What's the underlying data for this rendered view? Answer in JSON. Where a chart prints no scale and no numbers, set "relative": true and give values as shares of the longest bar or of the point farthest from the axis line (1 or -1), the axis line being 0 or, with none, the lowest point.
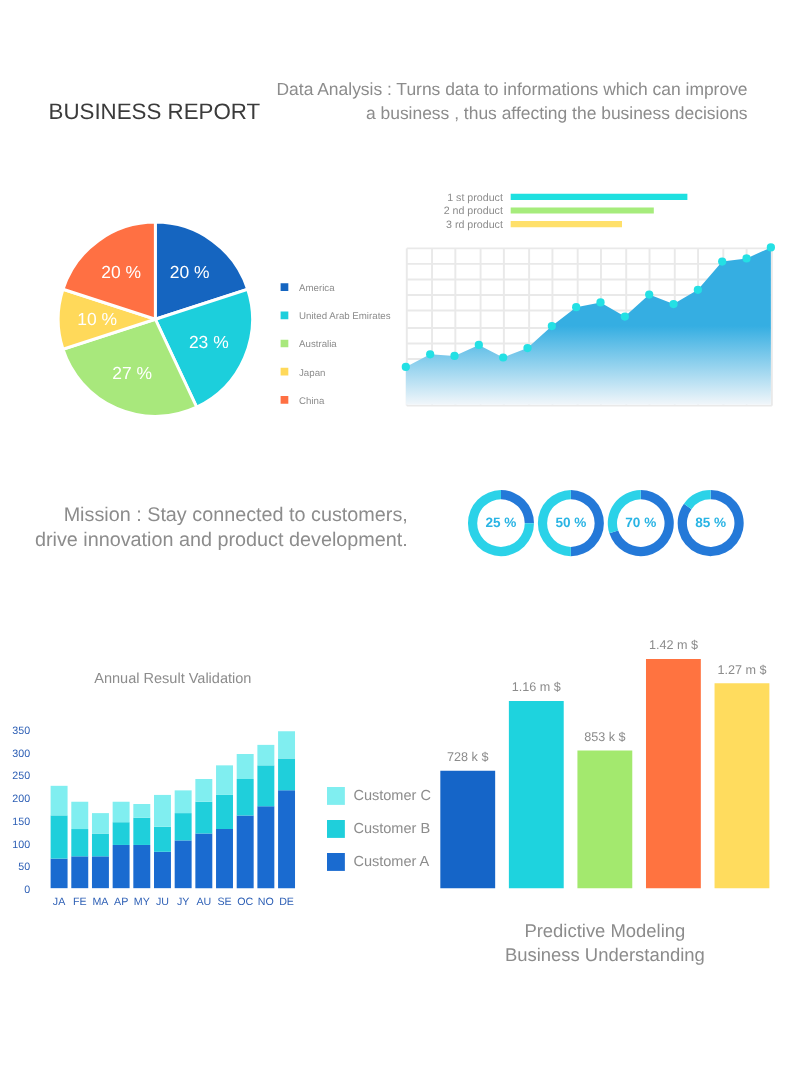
{
  "chart_data": [
    {
      "type": "other",
      "title": "BUSINESS REPORT",
      "subtitle": "Data Analysis : Turns data to informations which can improve a business , thus affecting the business decisions"
    },
    {
      "type": "pie",
      "categories": [
        "America",
        "United Arab Emirates",
        "Australia",
        "Japan",
        "China"
      ],
      "values": [
        20,
        23,
        27,
        10,
        20
      ],
      "colors": [
        "#1565c0",
        "#1ccfdc",
        "#a8e87c",
        "#ffd95a",
        "#ff7043"
      ],
      "value_labels": [
        "20 %",
        "23 %",
        "27 %",
        "10 %",
        "20 %"
      ],
      "legend": "right"
    },
    {
      "type": "bar",
      "orientation": "horizontal",
      "relative": true,
      "categories": [
        "1 st product",
        "2 nd product",
        "3 rd product"
      ],
      "values": [
        1,
        0.81,
        0.63
      ],
      "colors": [
        "#1ee0e0",
        "#a6ec7c",
        "#ffe06a"
      ]
    },
    {
      "type": "area",
      "relative": true,
      "categories": [
        null,
        null,
        null,
        null,
        null,
        null,
        null,
        null,
        null,
        null,
        null,
        null,
        null,
        null,
        null,
        null
      ],
      "series": [
        {
          "color": "#35aee2",
          "values": [
            0.24,
            0.32,
            0.31,
            0.38,
            0.3,
            0.36,
            0.5,
            0.62,
            0.65,
            0.56,
            0.7,
            0.64,
            0.73,
            0.91,
            0.93,
            1
          ]
        }
      ],
      "marker": "circle",
      "grid": true
    },
    {
      "type": "other",
      "annotations": [
        "Mission : Stay connected to customers, drive innovation and product development."
      ]
    },
    {
      "type": "donut",
      "categories": [
        null,
        null
      ],
      "values": [
        25,
        75
      ],
      "colors": [
        "#2479d8",
        "#2bd2e8"
      ],
      "annotations": [
        "25 %"
      ]
    },
    {
      "type": "donut",
      "categories": [
        null,
        null
      ],
      "values": [
        50,
        50
      ],
      "colors": [
        "#2479d8",
        "#2bd2e8"
      ],
      "annotations": [
        "50 %"
      ]
    },
    {
      "type": "donut",
      "categories": [
        null,
        null
      ],
      "values": [
        70,
        30
      ],
      "colors": [
        "#2479d8",
        "#2bd2e8"
      ],
      "annotations": [
        "70 %"
      ]
    },
    {
      "type": "donut",
      "categories": [
        null,
        null
      ],
      "values": [
        85,
        15
      ],
      "colors": [
        "#2479d8",
        "#2bd2e8"
      ],
      "annotations": [
        "85 %"
      ]
    },
    {
      "type": "bar",
      "stacked": true,
      "title": "Annual Result Validation",
      "categories": [
        "JA",
        "FE",
        "MA",
        "AP",
        "MY",
        "JU",
        "JY",
        "AU",
        "SE",
        "OC",
        "NO",
        "DE"
      ],
      "series": [
        {
          "name": "Customer A",
          "color": "#1a6bd0",
          "values": [
            65,
            70,
            70,
            95,
            95,
            80,
            105,
            120,
            130,
            160,
            180,
            215
          ]
        },
        {
          "name": "Customer B",
          "color": "#1fcfdb",
          "values": [
            95,
            60,
            50,
            50,
            60,
            55,
            60,
            70,
            75,
            80,
            90,
            70
          ]
        },
        {
          "name": "Customer C",
          "color": "#80eef0",
          "values": [
            65,
            60,
            45,
            45,
            30,
            70,
            50,
            50,
            65,
            55,
            45,
            60
          ]
        }
      ],
      "ylim": [
        0,
        350
      ],
      "yticks": [
        0,
        50,
        100,
        150,
        200,
        250,
        300,
        350
      ],
      "legend": "right"
    },
    {
      "type": "bar",
      "title": "Predictive Modeling",
      "subtitle": "Business Understanding",
      "categories": [
        null,
        null,
        null,
        null,
        null
      ],
      "values": [
        0.728,
        1.16,
        0.853,
        1.42,
        1.27
      ],
      "colors": [
        "#1565c8",
        "#1ed3de",
        "#a3e96e",
        "#ff7340",
        "#ffdc5e"
      ],
      "value_labels": [
        "728 k $",
        "1.16 m $",
        "853 k $",
        "1.42 m $",
        "1.27 m $"
      ]
    }
  ]
}
